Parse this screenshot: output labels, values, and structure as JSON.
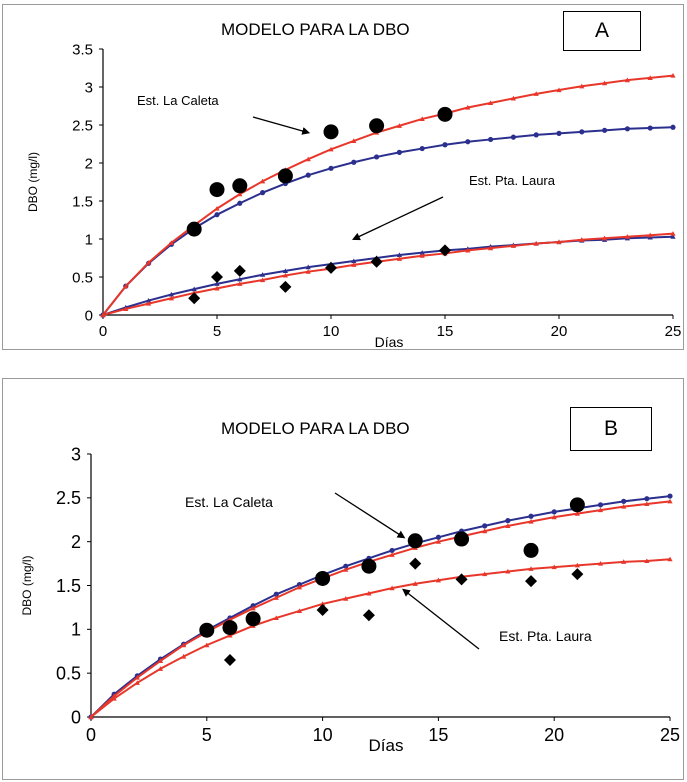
{
  "chart_data": [
    {
      "type": "line",
      "panel_letter": "A",
      "title": "MODELO PARA LA DBO",
      "xlabel": "Días",
      "ylabel": "DBO (mg/l)",
      "xlim": [
        0,
        25
      ],
      "ylim": [
        0,
        3.5
      ],
      "x_ticks": [
        "0",
        "5",
        "10",
        "15",
        "20",
        "25"
      ],
      "y_ticks": [
        "0",
        "0.5",
        "1",
        "1.5",
        "2",
        "2.5",
        "3",
        "3.5"
      ],
      "grid": false,
      "annotations": [
        {
          "text": "Est. La Caleta",
          "arrow_to": [
            9,
            2.4
          ]
        },
        {
          "text": "Est. Pta. Laura",
          "arrow_to": [
            11,
            1.0
          ]
        }
      ],
      "series": [
        {
          "color": "#2b2f8e",
          "marker": "circle",
          "values": [
            [
              0,
              0
            ],
            [
              1,
              0.38
            ],
            [
              2,
              0.68
            ],
            [
              3,
              0.93
            ],
            [
              4,
              1.14
            ],
            [
              5,
              1.32
            ],
            [
              6,
              1.47
            ],
            [
              7,
              1.61
            ],
            [
              8,
              1.73
            ],
            [
              9,
              1.84
            ],
            [
              10,
              1.93
            ],
            [
              11,
              2.01
            ],
            [
              12,
              2.08
            ],
            [
              13,
              2.14
            ],
            [
              14,
              2.19
            ],
            [
              15,
              2.24
            ],
            [
              16,
              2.28
            ],
            [
              17,
              2.31
            ],
            [
              18,
              2.34
            ],
            [
              19,
              2.37
            ],
            [
              20,
              2.39
            ],
            [
              21,
              2.41
            ],
            [
              22,
              2.43
            ],
            [
              23,
              2.45
            ],
            [
              24,
              2.46
            ],
            [
              25,
              2.47
            ]
          ]
        },
        {
          "color": "#e8372a",
          "marker": "triangle",
          "values": [
            [
              0,
              0
            ],
            [
              1,
              0.38
            ],
            [
              2,
              0.69
            ],
            [
              3,
              0.95
            ],
            [
              4,
              1.18
            ],
            [
              5,
              1.4
            ],
            [
              6,
              1.59
            ],
            [
              7,
              1.76
            ],
            [
              8,
              1.91
            ],
            [
              9,
              2.05
            ],
            [
              10,
              2.18
            ],
            [
              11,
              2.29
            ],
            [
              12,
              2.4
            ],
            [
              13,
              2.49
            ],
            [
              14,
              2.58
            ],
            [
              15,
              2.65
            ],
            [
              16,
              2.73
            ],
            [
              17,
              2.79
            ],
            [
              18,
              2.85
            ],
            [
              19,
              2.91
            ],
            [
              20,
              2.96
            ],
            [
              21,
              3.01
            ],
            [
              22,
              3.05
            ],
            [
              23,
              3.09
            ],
            [
              24,
              3.12
            ],
            [
              25,
              3.15
            ]
          ]
        },
        {
          "color": "#2b2f8e",
          "marker": "triangle",
          "values": [
            [
              0,
              0
            ],
            [
              1,
              0.1
            ],
            [
              2,
              0.19
            ],
            [
              3,
              0.27
            ],
            [
              4,
              0.34
            ],
            [
              5,
              0.41
            ],
            [
              6,
              0.47
            ],
            [
              7,
              0.53
            ],
            [
              8,
              0.58
            ],
            [
              9,
              0.63
            ],
            [
              10,
              0.67
            ],
            [
              11,
              0.71
            ],
            [
              12,
              0.75
            ],
            [
              13,
              0.79
            ],
            [
              14,
              0.82
            ],
            [
              15,
              0.85
            ],
            [
              16,
              0.87
            ],
            [
              17,
              0.9
            ],
            [
              18,
              0.92
            ],
            [
              19,
              0.94
            ],
            [
              20,
              0.96
            ],
            [
              21,
              0.98
            ],
            [
              22,
              0.99
            ],
            [
              23,
              1.01
            ],
            [
              24,
              1.02
            ],
            [
              25,
              1.03
            ]
          ]
        },
        {
          "color": "#e8372a",
          "marker": "triangle",
          "values": [
            [
              0,
              0
            ],
            [
              1,
              0.08
            ],
            [
              2,
              0.15
            ],
            [
              3,
              0.22
            ],
            [
              4,
              0.29
            ],
            [
              5,
              0.35
            ],
            [
              6,
              0.41
            ],
            [
              7,
              0.46
            ],
            [
              8,
              0.52
            ],
            [
              9,
              0.57
            ],
            [
              10,
              0.61
            ],
            [
              11,
              0.66
            ],
            [
              12,
              0.7
            ],
            [
              13,
              0.74
            ],
            [
              14,
              0.78
            ],
            [
              15,
              0.81
            ],
            [
              16,
              0.85
            ],
            [
              17,
              0.88
            ],
            [
              18,
              0.91
            ],
            [
              19,
              0.94
            ],
            [
              20,
              0.96
            ],
            [
              21,
              0.99
            ],
            [
              22,
              1.01
            ],
            [
              23,
              1.03
            ],
            [
              24,
              1.05
            ],
            [
              25,
              1.07
            ]
          ]
        }
      ],
      "observations": [
        {
          "marker": "circle",
          "points": [
            [
              4,
              1.13
            ],
            [
              5,
              1.65
            ],
            [
              6,
              1.7
            ],
            [
              8,
              1.83
            ],
            [
              10,
              2.41
            ],
            [
              12,
              2.49
            ],
            [
              15,
              2.64
            ]
          ]
        },
        {
          "marker": "diamond",
          "points": [
            [
              4,
              0.22
            ],
            [
              5,
              0.5
            ],
            [
              6,
              0.58
            ],
            [
              8,
              0.37
            ],
            [
              10,
              0.62
            ],
            [
              12,
              0.7
            ],
            [
              15,
              0.85
            ]
          ]
        }
      ]
    },
    {
      "type": "line",
      "panel_letter": "B",
      "title": "MODELO PARA LA DBO",
      "xlabel": "Días",
      "ylabel": "DBO (mg/l)",
      "xlim": [
        0,
        25
      ],
      "ylim": [
        0,
        3
      ],
      "x_ticks": [
        "0",
        "5",
        "10",
        "15",
        "20",
        "25"
      ],
      "y_ticks": [
        "0",
        "0.5",
        "1",
        "1.5",
        "2",
        "2.5",
        "3"
      ],
      "grid": false,
      "annotations": [
        {
          "text": "Est. La Caleta",
          "arrow_to": [
            13.5,
            2.05
          ]
        },
        {
          "text": "Est. Pta. Laura",
          "arrow_to": [
            13.5,
            1.45
          ]
        }
      ],
      "series": [
        {
          "color": "#2b2f8e",
          "marker": "circle",
          "values": [
            [
              0,
              0
            ],
            [
              1,
              0.26
            ],
            [
              2,
              0.47
            ],
            [
              3,
              0.66
            ],
            [
              4,
              0.83
            ],
            [
              5,
              0.99
            ],
            [
              6,
              1.13
            ],
            [
              7,
              1.27
            ],
            [
              8,
              1.4
            ],
            [
              9,
              1.51
            ],
            [
              10,
              1.62
            ],
            [
              11,
              1.72
            ],
            [
              12,
              1.81
            ],
            [
              13,
              1.9
            ],
            [
              14,
              1.98
            ],
            [
              15,
              2.05
            ],
            [
              16,
              2.12
            ],
            [
              17,
              2.18
            ],
            [
              18,
              2.24
            ],
            [
              19,
              2.29
            ],
            [
              20,
              2.34
            ],
            [
              21,
              2.38
            ],
            [
              22,
              2.42
            ],
            [
              23,
              2.46
            ],
            [
              24,
              2.49
            ],
            [
              25,
              2.52
            ]
          ]
        },
        {
          "color": "#e8372a",
          "marker": "triangle",
          "values": [
            [
              0,
              0
            ],
            [
              1,
              0.24
            ],
            [
              2,
              0.45
            ],
            [
              3,
              0.64
            ],
            [
              4,
              0.82
            ],
            [
              5,
              0.97
            ],
            [
              6,
              1.11
            ],
            [
              7,
              1.24
            ],
            [
              8,
              1.36
            ],
            [
              9,
              1.48
            ],
            [
              10,
              1.58
            ],
            [
              11,
              1.68
            ],
            [
              12,
              1.77
            ],
            [
              13,
              1.85
            ],
            [
              14,
              1.93
            ],
            [
              15,
              2.0
            ],
            [
              16,
              2.06
            ],
            [
              17,
              2.12
            ],
            [
              18,
              2.18
            ],
            [
              19,
              2.23
            ],
            [
              20,
              2.28
            ],
            [
              21,
              2.32
            ],
            [
              22,
              2.36
            ],
            [
              23,
              2.4
            ],
            [
              24,
              2.43
            ],
            [
              25,
              2.46
            ]
          ]
        },
        {
          "color": "#e8372a",
          "marker": "triangle",
          "values": [
            [
              0,
              0
            ],
            [
              1,
              0.21
            ],
            [
              2,
              0.39
            ],
            [
              3,
              0.55
            ],
            [
              4,
              0.69
            ],
            [
              5,
              0.82
            ],
            [
              6,
              0.93
            ],
            [
              7,
              1.04
            ],
            [
              8,
              1.13
            ],
            [
              9,
              1.21
            ],
            [
              10,
              1.29
            ],
            [
              11,
              1.35
            ],
            [
              12,
              1.41
            ],
            [
              13,
              1.47
            ],
            [
              14,
              1.52
            ],
            [
              15,
              1.56
            ],
            [
              16,
              1.6
            ],
            [
              17,
              1.63
            ],
            [
              18,
              1.66
            ],
            [
              19,
              1.69
            ],
            [
              20,
              1.71
            ],
            [
              21,
              1.73
            ],
            [
              22,
              1.75
            ],
            [
              23,
              1.77
            ],
            [
              24,
              1.78
            ],
            [
              25,
              1.8
            ]
          ]
        }
      ],
      "observations": [
        {
          "marker": "circle",
          "points": [
            [
              5,
              0.99
            ],
            [
              6,
              1.02
            ],
            [
              7,
              1.12
            ],
            [
              10,
              1.58
            ],
            [
              12,
              1.72
            ],
            [
              14,
              2.01
            ],
            [
              16,
              2.03
            ],
            [
              19,
              1.9
            ],
            [
              21,
              2.42
            ]
          ]
        },
        {
          "marker": "diamond",
          "points": [
            [
              6,
              0.65
            ],
            [
              10,
              1.22
            ],
            [
              12,
              1.16
            ],
            [
              14,
              1.75
            ],
            [
              16,
              1.57
            ],
            [
              19,
              1.55
            ],
            [
              21,
              1.63
            ]
          ]
        }
      ]
    }
  ]
}
